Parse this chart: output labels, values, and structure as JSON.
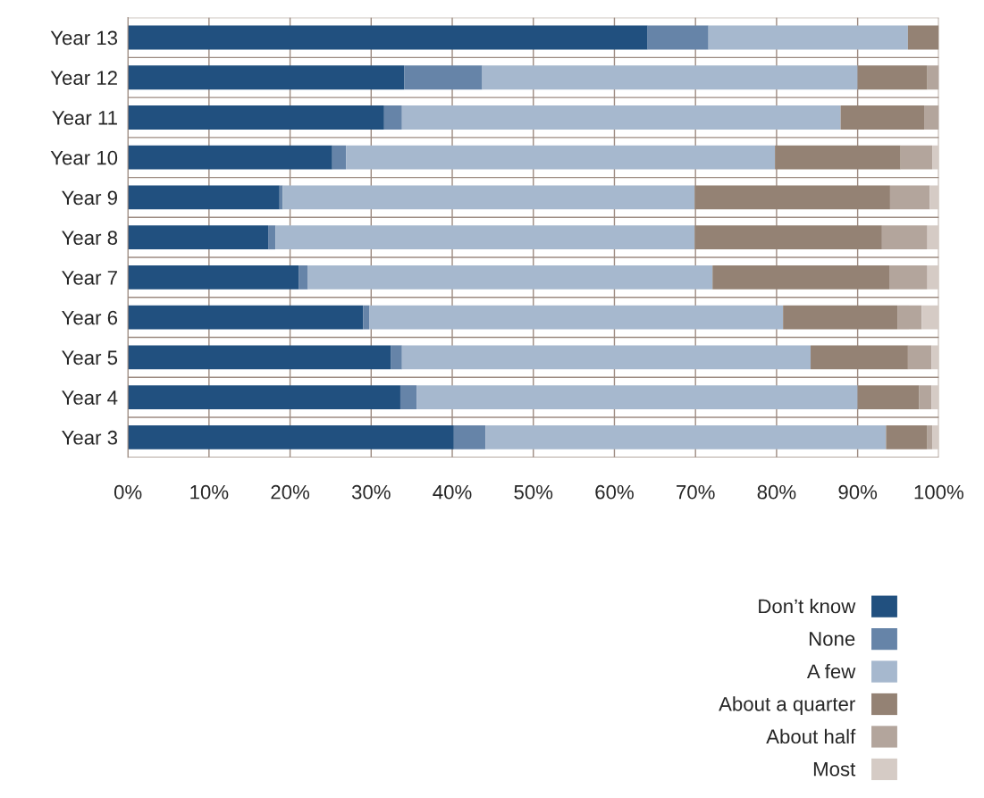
{
  "chart_data": {
    "type": "bar",
    "orientation": "horizontal",
    "stacked": true,
    "categories": [
      "Year 13",
      "Year 12",
      "Year 11",
      "Year 10",
      "Year 9",
      "Year 8",
      "Year 7",
      "Year 6",
      "Year 5",
      "Year 4",
      "Year 3"
    ],
    "series": [
      {
        "name": "Don’t know",
        "color": "#21507f",
        "values": [
          64.1,
          34.1,
          31.6,
          25.2,
          18.7,
          17.3,
          21.1,
          29.0,
          32.4,
          33.6,
          40.2
        ]
      },
      {
        "name": "None",
        "color": "#6684a8",
        "values": [
          7.5,
          9.6,
          2.2,
          1.7,
          0.4,
          0.9,
          1.1,
          0.8,
          1.4,
          2.0,
          3.9
        ]
      },
      {
        "name": "A few",
        "color": "#a6b8ce",
        "values": [
          24.6,
          46.3,
          54.1,
          52.9,
          50.8,
          51.7,
          49.9,
          51.0,
          50.4,
          54.4,
          49.4
        ]
      },
      {
        "name": "About a quarter",
        "color": "#948274",
        "values": [
          3.8,
          8.6,
          10.3,
          15.5,
          24.1,
          23.1,
          21.8,
          14.1,
          12.0,
          7.6,
          5.1
        ]
      },
      {
        "name": "About half",
        "color": "#b3a59c",
        "values": [
          0,
          1.4,
          1.8,
          3.9,
          4.9,
          5.6,
          4.7,
          3.0,
          2.9,
          1.5,
          0.6
        ]
      },
      {
        "name": "Most",
        "color": "#d5cbc5",
        "values": [
          0,
          0,
          0,
          0.8,
          1.1,
          1.4,
          1.4,
          2.1,
          0.9,
          0.9,
          0.8
        ]
      }
    ],
    "xlim": [
      0,
      100
    ],
    "xticks": [
      {
        "value": 0,
        "label": "0%"
      },
      {
        "value": 10,
        "label": "10%"
      },
      {
        "value": 20,
        "label": "20%"
      },
      {
        "value": 30,
        "label": "30%"
      },
      {
        "value": 40,
        "label": "40%"
      },
      {
        "value": 50,
        "label": "50%"
      },
      {
        "value": 60,
        "label": "60%"
      },
      {
        "value": 70,
        "label": "70%"
      },
      {
        "value": 80,
        "label": "80%"
      },
      {
        "value": 90,
        "label": "90%"
      },
      {
        "value": 100,
        "label": "100%"
      }
    ],
    "grid": true,
    "legend": "bottom right"
  }
}
